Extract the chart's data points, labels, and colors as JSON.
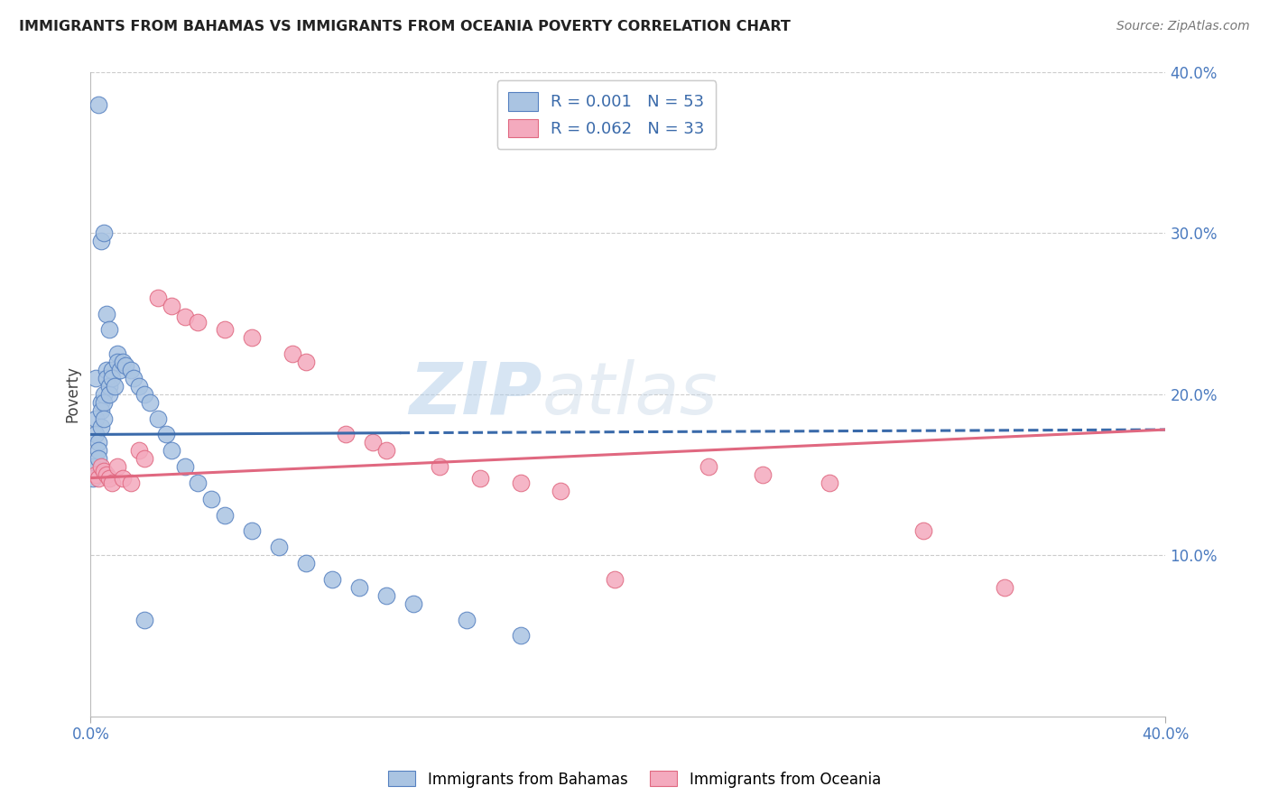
{
  "title": "IMMIGRANTS FROM BAHAMAS VS IMMIGRANTS FROM OCEANIA POVERTY CORRELATION CHART",
  "source": "Source: ZipAtlas.com",
  "ylabel": "Poverty",
  "xlim": [
    0.0,
    0.4
  ],
  "ylim": [
    0.0,
    0.4
  ],
  "legend_labels": [
    "Immigrants from Bahamas",
    "Immigrants from Oceania"
  ],
  "blue_color": "#aac4e2",
  "pink_color": "#f4aabe",
  "blue_edge_color": "#5580c0",
  "pink_edge_color": "#e06880",
  "blue_line_color": "#3a6aaa",
  "pink_line_color": "#e06880",
  "grid_color": "#cccccc",
  "watermark_zip": "ZIP",
  "watermark_atlas": "atlas",
  "blue_x": [
    0.001,
    0.001,
    0.002,
    0.002,
    0.002,
    0.003,
    0.003,
    0.003,
    0.004,
    0.004,
    0.004,
    0.005,
    0.005,
    0.005,
    0.006,
    0.006,
    0.007,
    0.007,
    0.008,
    0.008,
    0.009,
    0.01,
    0.01,
    0.011,
    0.012,
    0.013,
    0.015,
    0.016,
    0.018,
    0.02,
    0.022,
    0.025,
    0.028,
    0.03,
    0.035,
    0.04,
    0.045,
    0.05,
    0.06,
    0.07,
    0.08,
    0.09,
    0.1,
    0.11,
    0.12,
    0.14,
    0.16,
    0.003,
    0.004,
    0.005,
    0.006,
    0.007,
    0.02
  ],
  "blue_y": [
    0.155,
    0.148,
    0.21,
    0.185,
    0.175,
    0.17,
    0.165,
    0.16,
    0.195,
    0.19,
    0.18,
    0.2,
    0.195,
    0.185,
    0.215,
    0.21,
    0.205,
    0.2,
    0.215,
    0.21,
    0.205,
    0.225,
    0.22,
    0.215,
    0.22,
    0.218,
    0.215,
    0.21,
    0.205,
    0.2,
    0.195,
    0.185,
    0.175,
    0.165,
    0.155,
    0.145,
    0.135,
    0.125,
    0.115,
    0.105,
    0.095,
    0.085,
    0.08,
    0.075,
    0.07,
    0.06,
    0.05,
    0.38,
    0.295,
    0.3,
    0.25,
    0.24,
    0.06
  ],
  "pink_x": [
    0.002,
    0.003,
    0.004,
    0.005,
    0.006,
    0.007,
    0.008,
    0.01,
    0.012,
    0.015,
    0.018,
    0.02,
    0.025,
    0.03,
    0.035,
    0.04,
    0.05,
    0.06,
    0.075,
    0.08,
    0.095,
    0.105,
    0.11,
    0.13,
    0.145,
    0.16,
    0.175,
    0.195,
    0.23,
    0.25,
    0.275,
    0.31,
    0.34
  ],
  "pink_y": [
    0.15,
    0.148,
    0.155,
    0.152,
    0.15,
    0.148,
    0.145,
    0.155,
    0.148,
    0.145,
    0.165,
    0.16,
    0.26,
    0.255,
    0.248,
    0.245,
    0.24,
    0.235,
    0.225,
    0.22,
    0.175,
    0.17,
    0.165,
    0.155,
    0.148,
    0.145,
    0.14,
    0.085,
    0.155,
    0.15,
    0.145,
    0.115,
    0.08
  ],
  "blue_trend_x": [
    0.0,
    0.115,
    0.4
  ],
  "blue_trend_y": [
    0.175,
    0.176,
    0.178
  ],
  "blue_trend_solid_end": 0.115,
  "pink_trend_x": [
    0.0,
    0.4
  ],
  "pink_trend_y": [
    0.148,
    0.178
  ]
}
